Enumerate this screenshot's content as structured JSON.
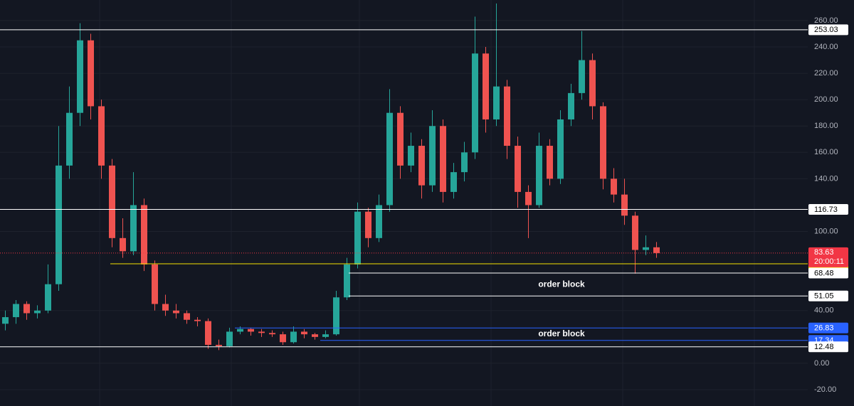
{
  "chart_data": {
    "type": "candlestick",
    "ylim": [
      -32.4,
      275.6
    ],
    "yticks": [
      {
        "value": 260,
        "label": "260.00"
      },
      {
        "value": 240,
        "label": "240.00"
      },
      {
        "value": 220,
        "label": "220.00"
      },
      {
        "value": 200,
        "label": "200.00"
      },
      {
        "value": 180,
        "label": "180.00"
      },
      {
        "value": 160,
        "label": "160.00"
      },
      {
        "value": 140,
        "label": "140.00"
      },
      {
        "value": 100,
        "label": "100.00"
      },
      {
        "value": 40,
        "label": "40.00"
      },
      {
        "value": 0,
        "label": "0.00"
      },
      {
        "value": -20,
        "label": "-20.00"
      }
    ],
    "grid": true,
    "up_color": "#26a69a",
    "down_color": "#ef5350",
    "series": {
      "open": [
        30,
        35,
        45,
        38,
        40,
        60,
        150,
        190,
        245,
        195,
        150,
        95,
        85,
        120,
        75,
        45,
        40,
        38,
        33,
        32,
        14,
        13,
        24,
        26,
        24,
        23,
        22,
        16,
        24,
        22,
        20,
        22,
        50,
        75,
        115,
        95,
        120,
        190,
        150,
        165,
        135,
        180,
        130,
        145,
        160,
        235,
        185,
        210,
        165,
        130,
        120,
        165,
        140,
        185,
        205,
        230,
        195,
        140,
        128,
        112,
        86,
        88
      ],
      "high": [
        40,
        48,
        47,
        44,
        75,
        180,
        210,
        258,
        250,
        200,
        155,
        110,
        145,
        125,
        78,
        52,
        45,
        40,
        35,
        34,
        18,
        27,
        28,
        27,
        26,
        25,
        24,
        28,
        26,
        23,
        25,
        55,
        80,
        122,
        118,
        128,
        208,
        195,
        175,
        170,
        192,
        185,
        152,
        168,
        263,
        240,
        273,
        215,
        172,
        135,
        175,
        170,
        192,
        212,
        252,
        235,
        198,
        148,
        140,
        115,
        97,
        92
      ],
      "low": [
        25,
        30,
        33,
        34,
        38,
        55,
        140,
        180,
        185,
        140,
        88,
        80,
        82,
        70,
        40,
        36,
        34,
        30,
        28,
        11,
        10,
        12,
        22,
        21,
        20,
        20,
        14,
        15,
        19,
        18,
        19,
        21,
        48,
        72,
        88,
        92,
        115,
        140,
        145,
        125,
        130,
        122,
        125,
        138,
        155,
        175,
        180,
        155,
        118,
        95,
        118,
        135,
        136,
        180,
        200,
        185,
        132,
        122,
        105,
        68,
        82,
        80
      ],
      "close": [
        35,
        45,
        38,
        40,
        60,
        150,
        190,
        245,
        195,
        150,
        95,
        85,
        120,
        75,
        45,
        40,
        38,
        33,
        32,
        14,
        13,
        24,
        26,
        24,
        23,
        22,
        16,
        24,
        22,
        20,
        22,
        50,
        75,
        115,
        95,
        120,
        190,
        150,
        165,
        135,
        180,
        130,
        145,
        160,
        235,
        185,
        210,
        165,
        130,
        120,
        165,
        140,
        185,
        205,
        230,
        195,
        140,
        128,
        112,
        86,
        88,
        83.63
      ]
    },
    "levels": [
      {
        "value": 253.03,
        "color": "#ffffff",
        "text_color": "#000000"
      },
      {
        "value": 116.73,
        "color": "#ffffff",
        "text_color": "#000000"
      },
      {
        "value": 75.49,
        "color": "#f5e100",
        "text_color": "#000000"
      },
      {
        "value": 68.48,
        "color": "#ffffff",
        "text_color": "#000000"
      },
      {
        "value": 51.05,
        "color": "#ffffff",
        "text_color": "#000000"
      },
      {
        "value": 26.83,
        "color": "#2962ff",
        "text_color": "#ffffff"
      },
      {
        "value": 17.34,
        "color": "#2962ff",
        "text_color": "#ffffff"
      },
      {
        "value": 12.48,
        "color": "#ffffff",
        "text_color": "#000000"
      }
    ],
    "last_price": {
      "value": 83.63,
      "countdown": "20:00:11",
      "color": "#f23645"
    },
    "annotations": [
      "order block",
      "order block"
    ]
  }
}
